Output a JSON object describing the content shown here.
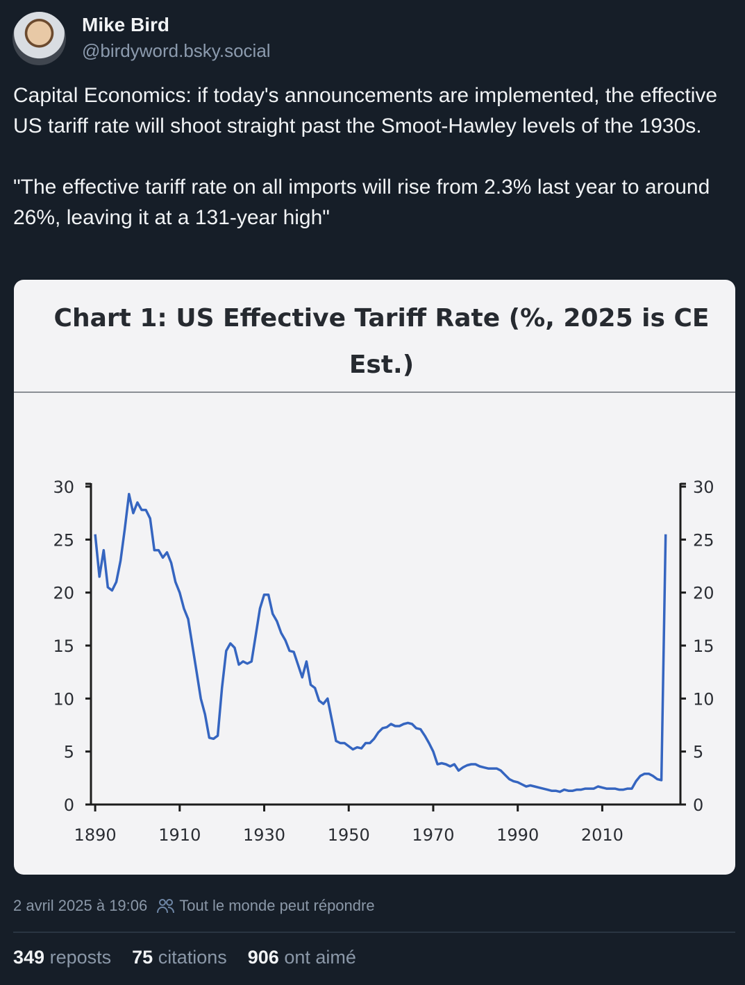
{
  "post": {
    "author_name": "Mike Bird",
    "author_handle": "@birdyword.bsky.social",
    "paragraphs": [
      "Capital Economics: if today's announcements are implemented, the effective US tariff rate will shoot straight past the Smoot-Hawley levels of the 1930s.",
      "\"The effective tariff rate on all imports will rise from 2.3% last year to around 26%, leaving it at a 131-year high\""
    ],
    "timestamp": "2 avril 2025 à 19:06",
    "reply_setting": "Tout le monde peut répondre",
    "stats": {
      "reposts_count": "349",
      "reposts_label": "reposts",
      "quotes_count": "75",
      "quotes_label": "citations",
      "likes_count": "906",
      "likes_label": "ont aimé"
    }
  },
  "colors": {
    "background": "#161e28",
    "line": "#3565c0"
  },
  "chart_data": {
    "type": "line",
    "title": "Chart 1: US Effective Tariff Rate (%, 2025 is CE Est.)",
    "xlabel": "",
    "ylabel": "",
    "xlim": [
      1889,
      2028.5
    ],
    "ylim": [
      0,
      30
    ],
    "x_ticks": [
      1890,
      1910,
      1930,
      1950,
      1970,
      1990,
      2010
    ],
    "y_ticks": [
      0,
      5,
      10,
      15,
      20,
      25,
      30
    ],
    "y_tick_labels": [
      "0",
      "5",
      "10",
      "15",
      "20",
      "25",
      "30"
    ],
    "x_tick_labels": [
      "1890",
      "1910",
      "1930",
      "1950",
      "1970",
      "1990",
      "2010"
    ],
    "grid": false,
    "series": [
      {
        "name": "US Effective Tariff Rate",
        "x": [
          1890,
          1891,
          1892,
          1893,
          1894,
          1895,
          1896,
          1897,
          1898,
          1899,
          1900,
          1901,
          1902,
          1903,
          1904,
          1905,
          1906,
          1907,
          1908,
          1909,
          1910,
          1911,
          1912,
          1913,
          1914,
          1915,
          1916,
          1917,
          1918,
          1919,
          1920,
          1921,
          1922,
          1923,
          1924,
          1925,
          1926,
          1927,
          1928,
          1929,
          1930,
          1931,
          1932,
          1933,
          1934,
          1935,
          1936,
          1937,
          1938,
          1939,
          1940,
          1941,
          1942,
          1943,
          1944,
          1945,
          1946,
          1947,
          1948,
          1949,
          1950,
          1951,
          1952,
          1953,
          1954,
          1955,
          1956,
          1957,
          1958,
          1959,
          1960,
          1961,
          1962,
          1963,
          1964,
          1965,
          1966,
          1967,
          1968,
          1969,
          1970,
          1971,
          1972,
          1973,
          1974,
          1975,
          1976,
          1977,
          1978,
          1979,
          1980,
          1981,
          1982,
          1983,
          1984,
          1985,
          1986,
          1987,
          1988,
          1989,
          1990,
          1991,
          1992,
          1993,
          1994,
          1995,
          1996,
          1997,
          1998,
          1999,
          2000,
          2001,
          2002,
          2003,
          2004,
          2005,
          2006,
          2007,
          2008,
          2009,
          2010,
          2011,
          2012,
          2013,
          2014,
          2015,
          2016,
          2017,
          2018,
          2019,
          2020,
          2021,
          2022,
          2023,
          2024,
          2025
        ],
        "values": [
          25.5,
          21.5,
          24,
          20.5,
          20.2,
          21,
          23,
          26,
          29.3,
          27.5,
          28.5,
          27.8,
          27.8,
          27,
          24,
          24,
          23.3,
          23.8,
          22.8,
          21,
          20,
          18.5,
          17.5,
          15,
          12.5,
          10,
          8.5,
          6.3,
          6.2,
          6.5,
          11,
          14.5,
          15.2,
          14.8,
          13.2,
          13.5,
          13.3,
          13.5,
          16,
          18.5,
          19.8,
          19.8,
          18,
          17.3,
          16.2,
          15.5,
          14.5,
          14.4,
          13.2,
          12,
          13.5,
          11.3,
          11,
          9.8,
          9.5,
          10,
          8,
          6,
          5.8,
          5.8,
          5.5,
          5.2,
          5.4,
          5.3,
          5.8,
          5.8,
          6.2,
          6.8,
          7.2,
          7.3,
          7.6,
          7.4,
          7.4,
          7.6,
          7.7,
          7.6,
          7.2,
          7.1,
          6.5,
          5.8,
          5,
          3.8,
          3.9,
          3.8,
          3.6,
          3.8,
          3.2,
          3.5,
          3.7,
          3.8,
          3.8,
          3.6,
          3.5,
          3.4,
          3.4,
          3.4,
          3.2,
          2.8,
          2.4,
          2.2,
          2.1,
          1.9,
          1.7,
          1.8,
          1.7,
          1.6,
          1.5,
          1.4,
          1.3,
          1.3,
          1.2,
          1.4,
          1.3,
          1.3,
          1.4,
          1.4,
          1.5,
          1.5,
          1.5,
          1.7,
          1.6,
          1.5,
          1.5,
          1.5,
          1.4,
          1.4,
          1.5,
          1.5,
          2.2,
          2.7,
          2.9,
          2.9,
          2.7,
          2.4,
          2.3,
          25.5
        ]
      }
    ]
  }
}
